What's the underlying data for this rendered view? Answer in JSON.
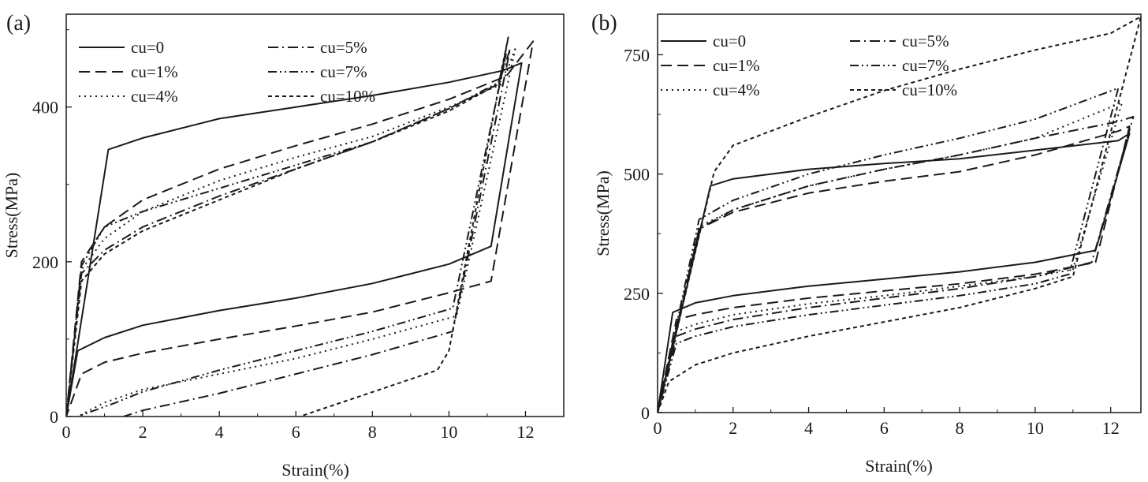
{
  "chart_data": [
    {
      "type": "line",
      "panel_label": "(a)",
      "xlabel": "Strain(%)",
      "ylabel": "Stress(MPa)",
      "xlim": [
        0,
        13
      ],
      "ylim": [
        0,
        520
      ],
      "xticks": [
        0,
        2,
        4,
        6,
        8,
        10,
        12
      ],
      "yticks": [
        0,
        200,
        400
      ],
      "legend_position": "top-left",
      "series": [
        {
          "name": "cu=0",
          "dash": "solid",
          "x": [
            0,
            1.1,
            2,
            4,
            6,
            8,
            10,
            11.4,
            11.9,
            11.1,
            10,
            8,
            6,
            4,
            2,
            1,
            0.3,
            0
          ],
          "y": [
            0,
            345,
            360,
            385,
            400,
            415,
            432,
            447,
            457,
            220,
            197,
            172,
            153,
            137,
            118,
            102,
            85,
            0
          ]
        },
        {
          "name": "cu=1%",
          "dash": "long-dash",
          "x": [
            0,
            0.4,
            1,
            2,
            4,
            6,
            8,
            10,
            11.5,
            12.2,
            11.1,
            10,
            8,
            6,
            4,
            2,
            1,
            0.4,
            0
          ],
          "y": [
            0,
            200,
            245,
            280,
            320,
            350,
            378,
            410,
            440,
            485,
            175,
            160,
            135,
            117,
            100,
            82,
            70,
            55,
            0
          ]
        },
        {
          "name": "cu=4%",
          "dash": "dotted",
          "x": [
            0,
            0.4,
            1,
            2,
            4,
            6,
            8,
            10,
            11.4,
            11.75,
            10.2,
            8,
            6,
            4,
            2,
            1,
            0.3
          ],
          "y": [
            0,
            190,
            230,
            265,
            305,
            335,
            362,
            400,
            430,
            478,
            130,
            100,
            75,
            55,
            35,
            18,
            0
          ]
        },
        {
          "name": "cu=5%",
          "dash": "dash-dot",
          "x": [
            0,
            0.4,
            1,
            2,
            4,
            6,
            8,
            10,
            11.3,
            11.6,
            10.1,
            8,
            6,
            4,
            2,
            1.5
          ],
          "y": [
            0,
            185,
            215,
            245,
            285,
            320,
            355,
            398,
            430,
            475,
            110,
            80,
            55,
            30,
            8,
            0
          ]
        },
        {
          "name": "cu=7%",
          "dash": "dash-dot-dot",
          "x": [
            0,
            0.4,
            1,
            2,
            4,
            6,
            8,
            10,
            11.3,
            11.5,
            10.1,
            8,
            6,
            4,
            2,
            1.3,
            0.3
          ],
          "y": [
            0,
            195,
            245,
            265,
            295,
            325,
            355,
            398,
            432,
            470,
            140,
            110,
            85,
            60,
            32,
            18,
            0
          ]
        },
        {
          "name": "cu=10%",
          "dash": "short-dash",
          "x": [
            0,
            0.4,
            1,
            2,
            4,
            6,
            8,
            10,
            11.3,
            11.55,
            10,
            9.7,
            6.1
          ],
          "y": [
            0,
            175,
            210,
            240,
            280,
            320,
            355,
            395,
            430,
            490,
            85,
            60,
            0
          ]
        }
      ]
    },
    {
      "type": "line",
      "panel_label": "(b)",
      "xlabel": "Strain(%)",
      "ylabel": "Stress(MPa)",
      "xlim": [
        0,
        12.8
      ],
      "ylim": [
        0,
        835
      ],
      "xticks": [
        0,
        2,
        4,
        6,
        8,
        10,
        12
      ],
      "yticks": [
        0,
        250,
        500,
        750
      ],
      "legend_position": "top-left",
      "series": [
        {
          "name": "cu=0",
          "dash": "solid",
          "x": [
            0,
            1.4,
            2,
            4,
            6,
            8,
            10,
            12.2,
            12.5,
            11.6,
            10,
            8,
            6,
            4,
            2,
            1,
            0.4,
            0
          ],
          "y": [
            0,
            475,
            490,
            510,
            522,
            532,
            550,
            570,
            585,
            340,
            315,
            295,
            280,
            265,
            245,
            230,
            210,
            0
          ]
        },
        {
          "name": "cu=1%",
          "dash": "long-dash",
          "x": [
            0,
            1.1,
            2,
            4,
            6,
            8,
            10,
            12.2,
            12.5,
            11.6,
            10,
            8,
            6,
            4,
            2,
            1,
            0.5,
            0
          ],
          "y": [
            0,
            385,
            420,
            460,
            485,
            505,
            540,
            590,
            600,
            315,
            290,
            270,
            255,
            240,
            220,
            205,
            195,
            0
          ]
        },
        {
          "name": "cu=4%",
          "dash": "dotted",
          "x": [
            0,
            1.1,
            2,
            4,
            6,
            8,
            10,
            12.3,
            11,
            10,
            8,
            6,
            4,
            2,
            1,
            0.5,
            0
          ],
          "y": [
            0,
            390,
            425,
            475,
            510,
            540,
            575,
            650,
            300,
            285,
            265,
            245,
            228,
            205,
            185,
            170,
            0
          ]
        },
        {
          "name": "cu=5%",
          "dash": "dash-dot",
          "x": [
            0,
            1.1,
            2,
            4,
            6,
            8,
            10,
            12.2,
            12.6,
            11.5,
            10,
            8,
            6,
            4,
            2,
            1,
            0.5,
            0
          ],
          "y": [
            0,
            385,
            425,
            475,
            510,
            540,
            575,
            610,
            620,
            315,
            285,
            260,
            240,
            220,
            195,
            175,
            160,
            0
          ]
        },
        {
          "name": "cu=7%",
          "dash": "dash-dot-dot",
          "x": [
            0,
            1.1,
            2,
            4,
            6,
            8,
            10,
            12.2,
            10.9,
            10,
            8,
            6,
            4,
            2,
            1,
            0.5,
            0
          ],
          "y": [
            0,
            405,
            445,
            500,
            540,
            575,
            615,
            680,
            290,
            270,
            245,
            225,
            205,
            180,
            160,
            145,
            0
          ]
        },
        {
          "name": "cu=10%",
          "dash": "short-dash",
          "x": [
            0,
            1.5,
            2,
            4,
            6,
            8,
            10,
            12,
            12.8,
            11,
            10,
            8,
            6,
            4,
            2,
            1,
            0.3,
            0
          ],
          "y": [
            0,
            505,
            560,
            620,
            675,
            720,
            760,
            795,
            830,
            285,
            260,
            220,
            190,
            160,
            125,
            100,
            65,
            0
          ]
        }
      ]
    }
  ]
}
